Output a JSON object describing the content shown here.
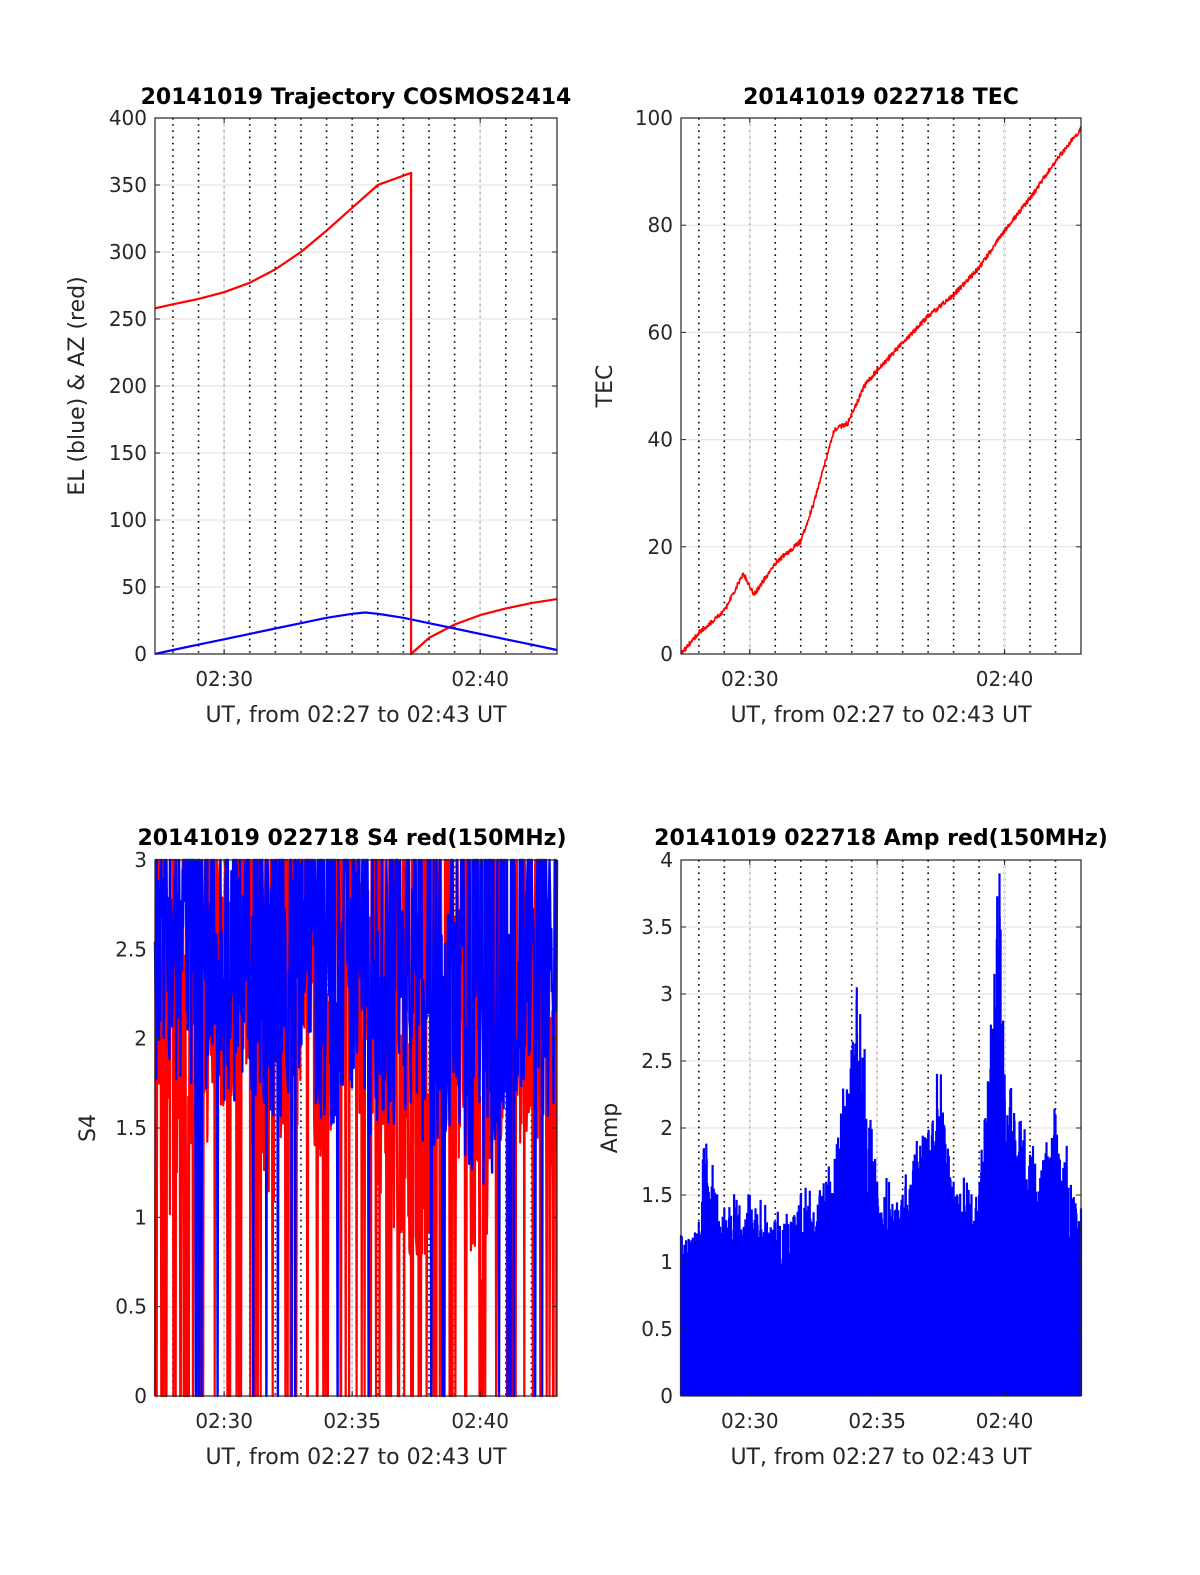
{
  "figure": {
    "colors": {
      "red": "#ff0000",
      "blue": "#0000ff",
      "grid": "#e6e6e6",
      "axes": "#262626",
      "background": "#ffffff"
    }
  },
  "chart_data": [
    {
      "id": "trajectory",
      "type": "line",
      "title": "20141019 Trajectory COSMOS2414",
      "xlabel": "UT, from 02:27 to 02:43 UT",
      "ylabel": "EL (blue) & AZ (red)",
      "xlim": [
        "02:27:18",
        "02:43:00"
      ],
      "ylim": [
        0,
        400
      ],
      "yticks": [
        0,
        50,
        100,
        150,
        200,
        250,
        300,
        350,
        400
      ],
      "xticks": [
        "02:30",
        "02:40"
      ],
      "minor_dotted_grid_minutes": [
        "02:28",
        "02:29",
        "02:30",
        "02:31",
        "02:32",
        "02:33",
        "02:34",
        "02:35",
        "02:36",
        "02:37",
        "02:38",
        "02:39",
        "02:40",
        "02:41",
        "02:42"
      ],
      "grid": true,
      "series": [
        {
          "color": "red",
          "x": [
            "02:27:18",
            "02:28:00",
            "02:29:00",
            "02:30:00",
            "02:31:00",
            "02:32:00",
            "02:33:00",
            "02:34:00",
            "02:35:00",
            "02:36:00",
            "02:37:18",
            "02:37:18",
            "02:38:00",
            "02:39:00",
            "02:40:00",
            "02:41:00",
            "02:42:00",
            "02:43:00"
          ],
          "values": [
            258,
            261,
            265,
            270,
            277,
            287,
            300,
            316,
            333,
            350,
            359,
            0,
            12,
            22,
            29,
            34,
            38,
            41
          ]
        },
        {
          "color": "blue",
          "x": [
            "02:27:18",
            "02:28:00",
            "02:29:00",
            "02:30:00",
            "02:31:00",
            "02:32:00",
            "02:33:00",
            "02:34:00",
            "02:35:00",
            "02:35:30",
            "02:36:00",
            "02:37:00",
            "02:38:00",
            "02:39:00",
            "02:40:00",
            "02:41:00",
            "02:42:00",
            "02:43:00"
          ],
          "values": [
            0,
            3,
            7,
            11,
            15,
            19,
            23,
            27,
            30,
            31,
            30,
            27,
            23,
            19,
            15,
            11,
            7,
            3
          ]
        }
      ]
    },
    {
      "id": "tec",
      "type": "line",
      "title": "20141019 022718 TEC",
      "xlabel": "UT, from 02:27 to 02:43 UT",
      "ylabel": "TEC",
      "xlim": [
        "02:27:18",
        "02:43:00"
      ],
      "ylim": [
        0,
        100
      ],
      "yticks": [
        0,
        20,
        40,
        60,
        80,
        100
      ],
      "xticks": [
        "02:30",
        "02:40"
      ],
      "minor_dotted_grid_minutes": [
        "02:28",
        "02:29",
        "02:30",
        "02:31",
        "02:32",
        "02:33",
        "02:34",
        "02:35",
        "02:36",
        "02:37",
        "02:38",
        "02:39",
        "02:40",
        "02:41",
        "02:42"
      ],
      "grid": true,
      "series": [
        {
          "color": "red",
          "x": [
            "02:27:18",
            "02:28:00",
            "02:29:00",
            "02:29:45",
            "02:30:10",
            "02:31:00",
            "02:32:00",
            "02:32:30",
            "02:33:20",
            "02:33:50",
            "02:34:30",
            "02:35:00",
            "02:36:00",
            "02:37:00",
            "02:38:00",
            "02:39:00",
            "02:40:00",
            "02:41:00",
            "02:42:00",
            "02:43:00"
          ],
          "values": [
            0,
            4,
            8,
            15,
            11,
            17,
            21,
            28,
            42,
            43,
            50,
            53,
            58,
            63,
            67,
            72,
            79,
            85,
            92,
            98
          ]
        }
      ]
    },
    {
      "id": "s4",
      "type": "line",
      "title": "20141019 022718 S4 red(150MHz)",
      "xlabel": "UT, from 02:27 to 02:43 UT",
      "ylabel": "S4",
      "xlim": [
        "02:27:18",
        "02:43:00"
      ],
      "ylim": [
        0,
        3
      ],
      "yticks": [
        0,
        0.5,
        1,
        1.5,
        2,
        2.5,
        3
      ],
      "xticks": [
        "02:30",
        "02:35",
        "02:40"
      ],
      "minor_dotted_grid_minutes": [
        "02:28",
        "02:29",
        "02:30",
        "02:31",
        "02:32",
        "02:33",
        "02:34",
        "02:35",
        "02:36",
        "02:37",
        "02:38",
        "02:39",
        "02:40",
        "02:41",
        "02:42"
      ],
      "grid": true,
      "series": [
        {
          "color": "red",
          "x": [
            "02:27:18",
            "02:28:00",
            "02:29:00",
            "02:30:00",
            "02:31:00",
            "02:32:00",
            "02:33:00",
            "02:34:00",
            "02:35:00",
            "02:36:00",
            "02:37:00",
            "02:38:00",
            "02:39:00",
            "02:40:00",
            "02:41:00",
            "02:42:00",
            "02:43:00"
          ],
          "values": [
            2.6,
            1.6,
            2.0,
            2.4,
            2.2,
            1.8,
            2.4,
            2.0,
            2.5,
            1.9,
            1.4,
            1.5,
            2.0,
            1.3,
            1.9,
            2.2,
            1.8
          ]
        },
        {
          "color": "blue",
          "x": [
            "02:27:18",
            "02:28:00",
            "02:29:00",
            "02:30:00",
            "02:31:00",
            "02:32:00",
            "02:33:00",
            "02:34:00",
            "02:35:00",
            "02:36:00",
            "02:37:00",
            "02:38:00",
            "02:39:00",
            "02:40:00",
            "02:41:00",
            "02:42:00",
            "02:43:00"
          ],
          "values": [
            2.4,
            2.3,
            2.5,
            2.2,
            2.4,
            2.2,
            2.5,
            2.1,
            2.4,
            2.0,
            2.3,
            2.0,
            2.2,
            1.8,
            2.1,
            2.3,
            2.1
          ]
        }
      ]
    },
    {
      "id": "amp",
      "type": "line",
      "title": "20141019 022718 Amp red(150MHz)",
      "xlabel": "UT, from 02:27 to 02:43 UT",
      "ylabel": "Amp",
      "xlim": [
        "02:27:18",
        "02:43:00"
      ],
      "ylim": [
        0,
        4
      ],
      "yticks": [
        0,
        0.5,
        1,
        1.5,
        2,
        2.5,
        3,
        3.5,
        4
      ],
      "xticks": [
        "02:30",
        "02:35",
        "02:40"
      ],
      "minor_dotted_grid_minutes": [
        "02:28",
        "02:29",
        "02:30",
        "02:31",
        "02:32",
        "02:33",
        "02:34",
        "02:35",
        "02:36",
        "02:37",
        "02:38",
        "02:39",
        "02:40",
        "02:41",
        "02:42"
      ],
      "grid": true,
      "series": [
        {
          "color": "blue",
          "x": [
            "02:27:18",
            "02:28:00",
            "02:28:12",
            "02:29:00",
            "02:30:00",
            "02:31:00",
            "02:32:00",
            "02:33:00",
            "02:33:40",
            "02:34:12",
            "02:34:20",
            "02:35:00",
            "02:36:00",
            "02:37:30",
            "02:38:00",
            "02:39:00",
            "02:39:36",
            "02:39:48",
            "02:40:00",
            "02:41:00",
            "02:42:00",
            "02:43:00"
          ],
          "values": [
            1.2,
            1.3,
            1.85,
            1.4,
            1.5,
            1.3,
            1.5,
            1.6,
            2.25,
            3.05,
            2.85,
            1.6,
            1.5,
            2.4,
            1.6,
            1.5,
            3.15,
            3.9,
            2.4,
            1.8,
            2.1,
            1.4
          ]
        }
      ]
    }
  ]
}
